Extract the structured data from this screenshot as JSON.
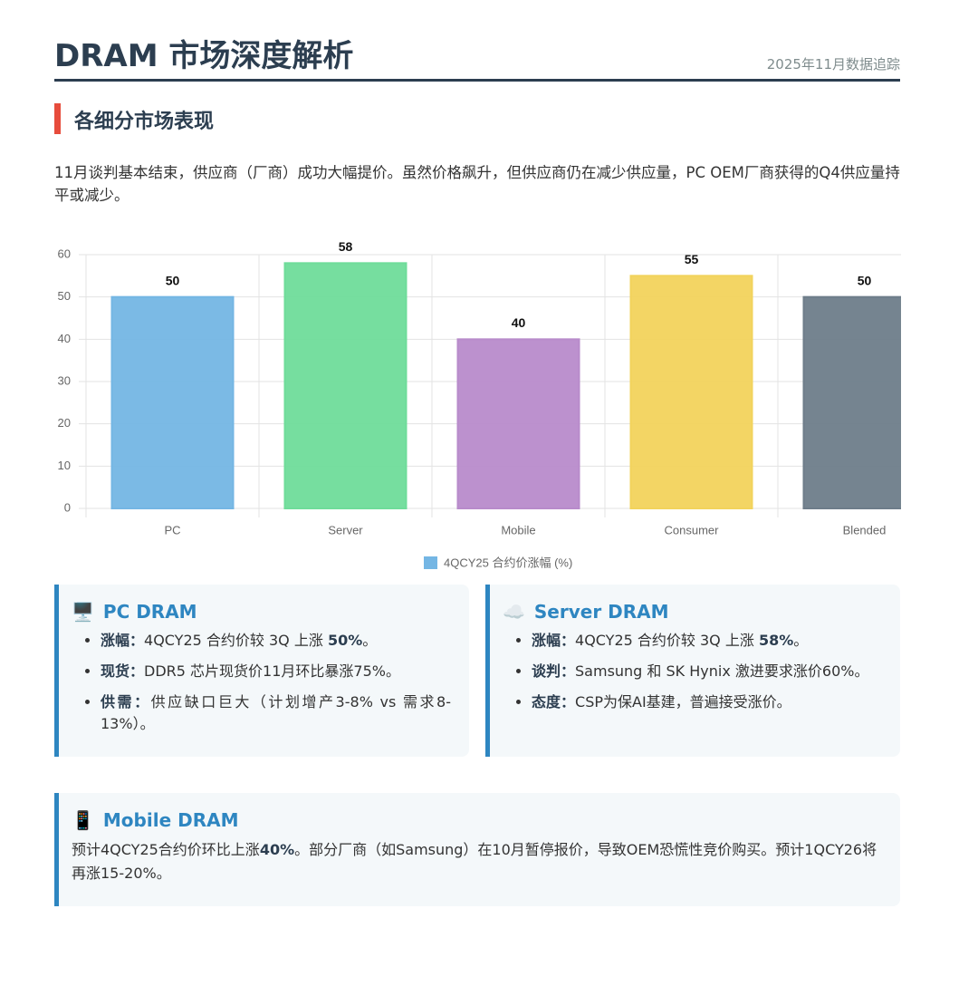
{
  "header": {
    "title": "DRAM 市场深度解析",
    "date": "2025年11月数据追踪"
  },
  "section": {
    "title": "各细分市场表现",
    "intro": "11月谈判基本结束，供应商（厂商）成功大幅提价。虽然价格飙升，但供应商仍在减少供应量，PC OEM厂商获得的Q4供应量持平或减少。"
  },
  "chart_data": {
    "type": "bar",
    "categories": [
      "PC",
      "Server",
      "Mobile",
      "Consumer",
      "Blended"
    ],
    "series": [
      {
        "name": "4QCY25 合约价涨幅 (%)",
        "color": "#74b6e4",
        "colors": [
          "#74b6e4",
          "#6fdc9a",
          "#b88bcb",
          "#f2d35c",
          "#6e7d8a"
        ],
        "values": [
          50,
          58,
          40,
          55,
          50
        ]
      }
    ],
    "ylim": [
      0,
      60
    ],
    "yticks": [
      0,
      10,
      20,
      30,
      40,
      50,
      60
    ],
    "grid": true
  },
  "cards": [
    {
      "icon": "🖥️",
      "title": "PC DRAM",
      "items": [
        {
          "label": "涨幅：",
          "text": "4QCY25 合约价较 3Q 上涨 ",
          "emphasis": "50%",
          "tail": "。"
        },
        {
          "label": "现货：",
          "text": "DDR5 芯片现货价11月环比暴涨75%。"
        },
        {
          "label": "供需：",
          "text": "供应缺口巨大（计划增产3-8% vs 需求8-13%）。"
        }
      ]
    },
    {
      "icon": "☁️",
      "title": "Server DRAM",
      "items": [
        {
          "label": "涨幅：",
          "text": "4QCY25 合约价较 3Q 上涨 ",
          "emphasis": "58%",
          "tail": "。"
        },
        {
          "label": "谈判：",
          "text": "Samsung 和 SK Hynix 激进要求涨价60%。"
        },
        {
          "label": "态度：",
          "text": "CSP为保AI基建，普遍接受涨价。"
        }
      ]
    },
    {
      "icon": "📱",
      "title": "Mobile DRAM",
      "text": "预计4QCY25合约价环比上涨",
      "emphasis": "40%",
      "tail": "。部分厂商（如Samsung）在10月暂停报价，导致OEM恐慌性竞价购买。预计1QCY26将再涨15-20%。"
    }
  ]
}
